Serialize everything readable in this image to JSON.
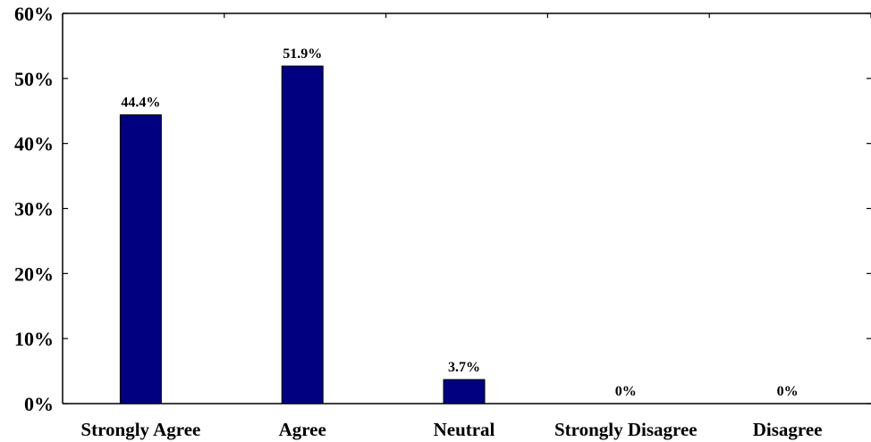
{
  "chart_data": {
    "type": "bar",
    "categories": [
      "Strongly Agree",
      "Agree",
      "Neutral",
      "Strongly Disagree",
      "Disagree"
    ],
    "values": [
      44.4,
      51.9,
      3.7,
      0,
      0
    ],
    "data_labels": [
      "44.4%",
      "51.9%",
      "3.7%",
      "0%",
      "0%"
    ],
    "title": "",
    "xlabel": "",
    "ylabel": "",
    "ylim": [
      0,
      60
    ],
    "y_ticks": [
      0,
      10,
      20,
      30,
      40,
      50,
      60
    ],
    "y_tick_labels": [
      "0%",
      "10%",
      "20%",
      "30%",
      "40%",
      "50%",
      "60%"
    ],
    "grid": false,
    "legend": "none",
    "bar_color": "#000080"
  }
}
